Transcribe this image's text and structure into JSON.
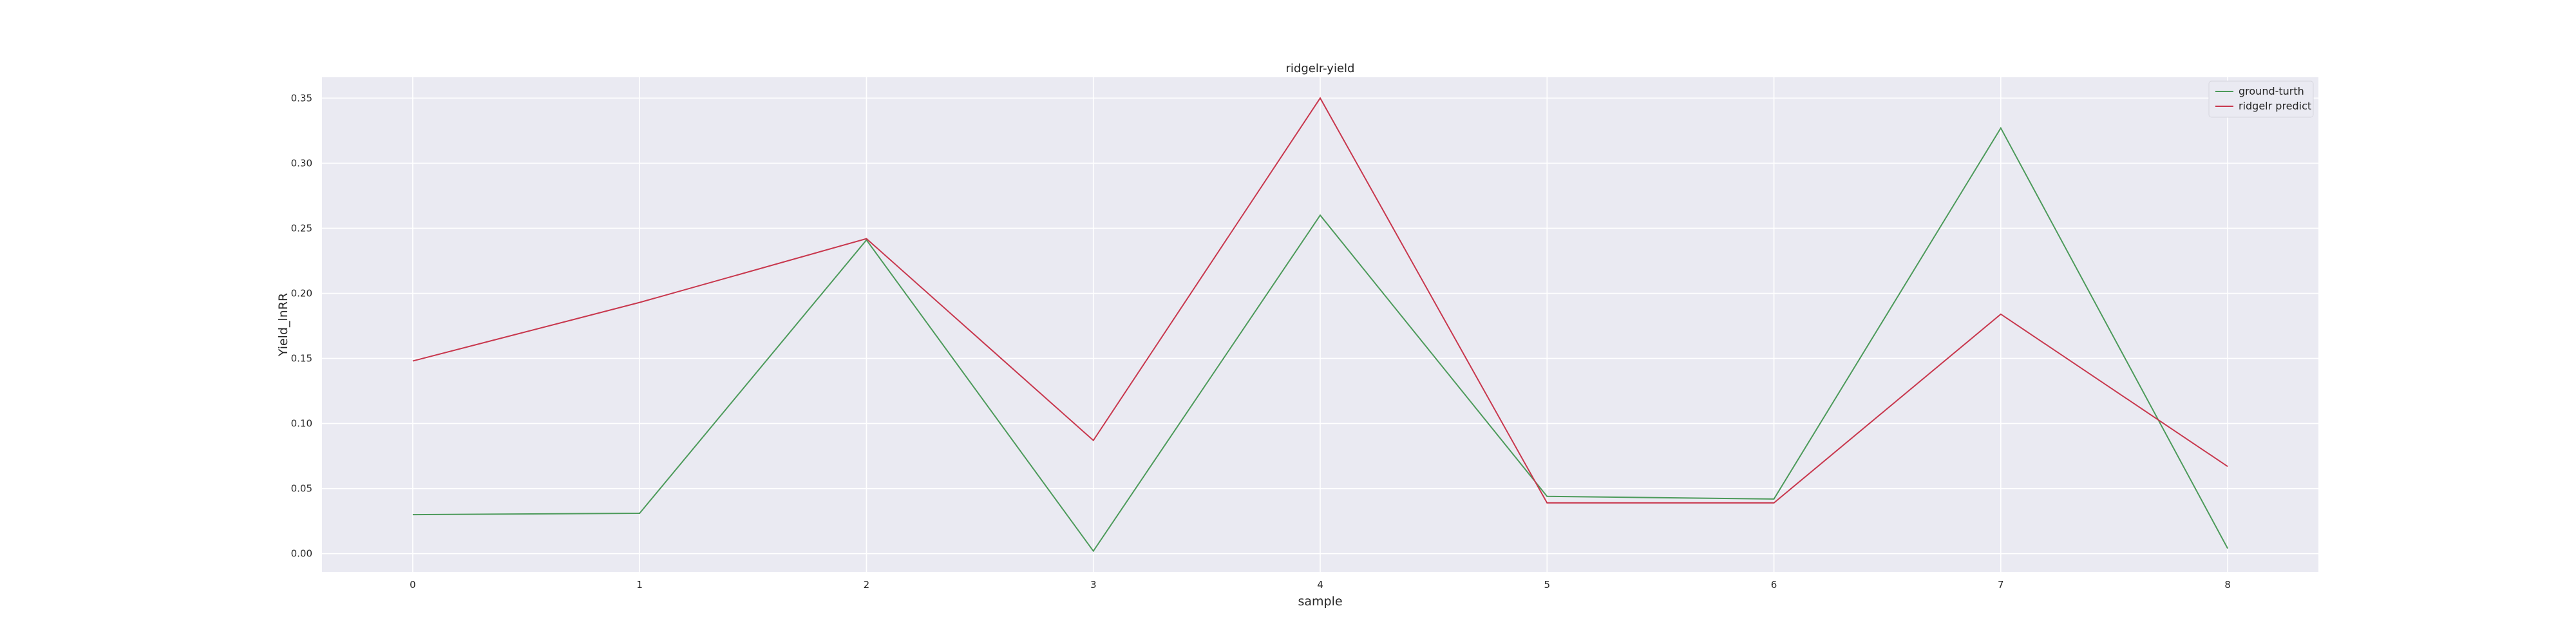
{
  "chart_data": {
    "type": "line",
    "title": "ridgelr-yield",
    "xlabel": "sample",
    "ylabel": "Yield_lnRR",
    "x": [
      0,
      1,
      2,
      3,
      4,
      5,
      6,
      7,
      8
    ],
    "x_ticks": [
      "0",
      "1",
      "2",
      "3",
      "4",
      "5",
      "6",
      "7",
      "8"
    ],
    "y_ticks": [
      "0.00",
      "0.05",
      "0.10",
      "0.15",
      "0.20",
      "0.25",
      "0.30",
      "0.35"
    ],
    "xlim": [
      -0.4,
      8.4
    ],
    "ylim": [
      -0.014,
      0.366
    ],
    "grid": true,
    "legend_position": "top-right",
    "background_color": "#eaeaf2",
    "series": [
      {
        "name": "ground-turth",
        "color": "#4c9a5a",
        "values": [
          0.03,
          0.031,
          0.241,
          0.002,
          0.26,
          0.044,
          0.042,
          0.327,
          0.004
        ]
      },
      {
        "name": "ridgelr predict",
        "color": "#c8374d",
        "values": [
          0.148,
          0.193,
          0.242,
          0.087,
          0.35,
          0.039,
          0.039,
          0.184,
          0.067
        ]
      }
    ]
  }
}
